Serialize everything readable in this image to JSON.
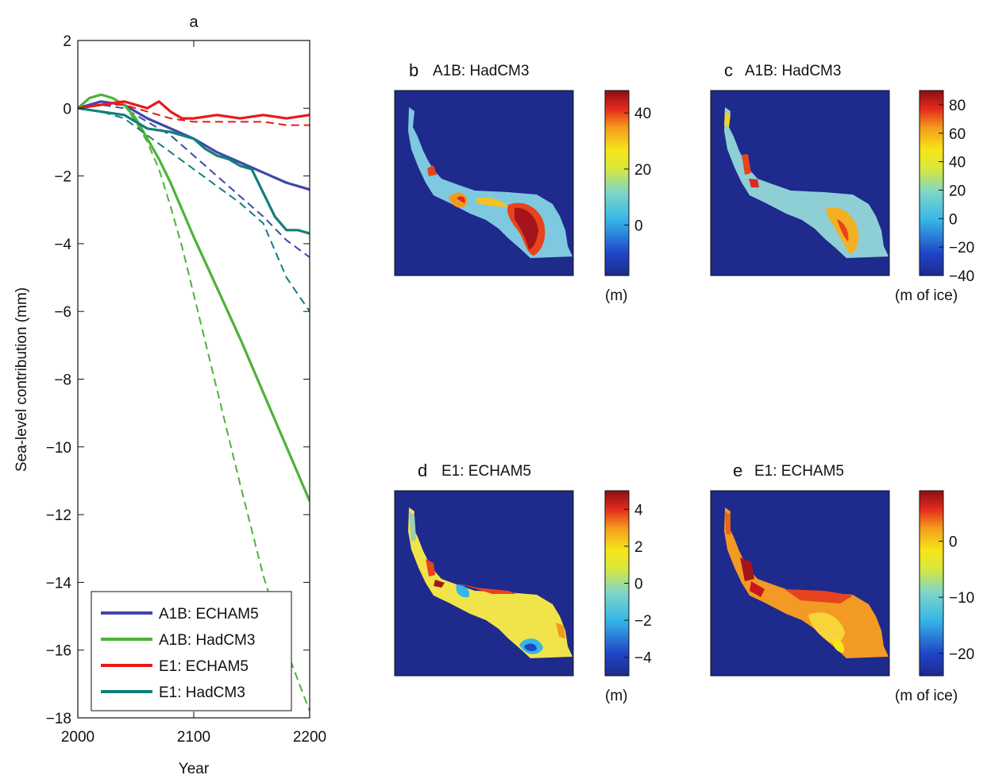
{
  "chart_data": [
    {
      "panel": "a",
      "type": "line",
      "title": "a",
      "xlabel": "Year",
      "ylabel": "Sea-level contribution (mm)",
      "xlim": [
        2000,
        2200
      ],
      "ylim": [
        -18,
        2
      ],
      "xticks": [
        "2000",
        "2100",
        "2200"
      ],
      "yticks": [
        "2",
        "0",
        "−2",
        "−4",
        "−6",
        "−8",
        "−10",
        "−12",
        "−14",
        "−16",
        "−18"
      ],
      "legend_position": "bottom-left",
      "colors": {
        "A1B: ECHAM5": "#3f48a8",
        "A1B: HadCM3": "#4db33a",
        "E1: ECHAM5": "#e8191b",
        "E1: HadCM3": "#137f7a"
      },
      "series": [
        {
          "name": "A1B: ECHAM5",
          "style": "solid",
          "x": [
            2000,
            2020,
            2040,
            2060,
            2080,
            2100,
            2120,
            2140,
            2160,
            2180,
            2200
          ],
          "values": [
            0,
            0.2,
            0.1,
            -0.3,
            -0.6,
            -0.9,
            -1.3,
            -1.6,
            -1.9,
            -2.2,
            -2.4
          ]
        },
        {
          "name": "A1B: ECHAM5",
          "style": "dashed",
          "x": [
            2000,
            2020,
            2040,
            2060,
            2080,
            2100,
            2120,
            2140,
            2160,
            2180,
            2200
          ],
          "values": [
            0,
            0.1,
            0,
            -0.4,
            -0.8,
            -1.4,
            -2.0,
            -2.6,
            -3.2,
            -3.9,
            -4.4
          ]
        },
        {
          "name": "A1B: HadCM3",
          "style": "solid",
          "x": [
            2000,
            2010,
            2020,
            2030,
            2040,
            2050,
            2060,
            2070,
            2080,
            2090,
            2100,
            2120,
            2140,
            2160,
            2180,
            2200
          ],
          "values": [
            0,
            0.3,
            0.4,
            0.3,
            0.1,
            -0.3,
            -0.9,
            -1.5,
            -2.2,
            -3.0,
            -3.8,
            -5.3,
            -6.8,
            -8.4,
            -10.0,
            -11.6
          ]
        },
        {
          "name": "A1B: HadCM3",
          "style": "dashed",
          "x": [
            2000,
            2010,
            2020,
            2030,
            2040,
            2050,
            2060,
            2070,
            2080,
            2090,
            2100,
            2120,
            2140,
            2160,
            2180,
            2200
          ],
          "values": [
            0,
            0.3,
            0.4,
            0.3,
            0.1,
            -0.4,
            -1.0,
            -1.8,
            -2.9,
            -4.1,
            -5.5,
            -8.3,
            -11.1,
            -13.8,
            -16.0,
            -17.8
          ]
        },
        {
          "name": "E1: ECHAM5",
          "style": "solid",
          "x": [
            2000,
            2020,
            2040,
            2060,
            2070,
            2080,
            2090,
            2100,
            2120,
            2140,
            2160,
            2180,
            2200
          ],
          "values": [
            0,
            0.1,
            0.2,
            0,
            0.2,
            -0.1,
            -0.3,
            -0.3,
            -0.2,
            -0.3,
            -0.2,
            -0.3,
            -0.2
          ]
        },
        {
          "name": "E1: ECHAM5",
          "style": "dashed",
          "x": [
            2000,
            2020,
            2040,
            2060,
            2080,
            2100,
            2120,
            2140,
            2160,
            2180,
            2200
          ],
          "values": [
            0,
            0.1,
            0.1,
            -0.1,
            -0.3,
            -0.4,
            -0.4,
            -0.4,
            -0.4,
            -0.5,
            -0.5
          ]
        },
        {
          "name": "E1: HadCM3",
          "style": "solid",
          "x": [
            2000,
            2020,
            2040,
            2060,
            2080,
            2100,
            2110,
            2120,
            2130,
            2140,
            2150,
            2160,
            2170,
            2180,
            2190,
            2200
          ],
          "values": [
            0,
            -0.1,
            -0.2,
            -0.6,
            -0.7,
            -0.9,
            -1.2,
            -1.4,
            -1.5,
            -1.7,
            -1.8,
            -2.5,
            -3.2,
            -3.6,
            -3.6,
            -3.7
          ]
        },
        {
          "name": "E1: HadCM3",
          "style": "dashed",
          "x": [
            2000,
            2020,
            2040,
            2060,
            2080,
            2100,
            2120,
            2140,
            2160,
            2170,
            2180,
            2190,
            2200
          ],
          "values": [
            0,
            -0.1,
            -0.3,
            -0.8,
            -1.3,
            -1.8,
            -2.3,
            -2.8,
            -3.4,
            -4.2,
            -5.0,
            -5.5,
            -6.0
          ]
        }
      ]
    },
    {
      "panel": "b",
      "type": "heatmap",
      "title": "A1B: HadCM3",
      "colorbar_ticks": [
        "40",
        "20",
        "0"
      ],
      "colorbar_range": [
        -18,
        48
      ],
      "unit": "(m)"
    },
    {
      "panel": "c",
      "type": "heatmap",
      "title": "A1B: HadCM3",
      "colorbar_ticks": [
        "80",
        "60",
        "40",
        "20",
        "0",
        "−20",
        "−40"
      ],
      "colorbar_range": [
        -40,
        90
      ],
      "unit": "(m of ice)"
    },
    {
      "panel": "d",
      "type": "heatmap",
      "title": "E1: ECHAM5",
      "colorbar_ticks": [
        "4",
        "2",
        "0",
        "−2",
        "−4"
      ],
      "colorbar_range": [
        -5,
        5
      ],
      "unit": "(m)"
    },
    {
      "panel": "e",
      "type": "heatmap",
      "title": "E1: ECHAM5",
      "colorbar_ticks": [
        "0",
        "−10",
        "−20"
      ],
      "colorbar_range": [
        -24,
        9
      ],
      "unit": "(m of ice)"
    }
  ],
  "panel_letters": {
    "b": "b",
    "c": "c",
    "d": "d",
    "e": "e"
  }
}
